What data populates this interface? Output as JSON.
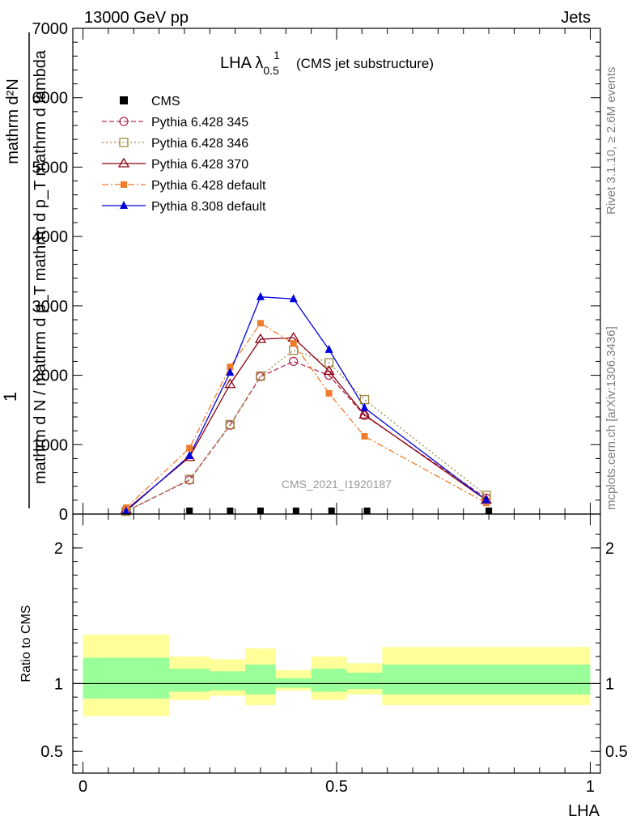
{
  "header": {
    "left": "13000 GeV pp",
    "right": "Jets"
  },
  "side_labels": {
    "rivet": "Rivet 3.1.10, ≥ 2.6M events",
    "mcplots": "mcplots.cern.ch [arXiv:1306.3436]"
  },
  "colors": {
    "cms": "#000000",
    "p345": "#b03050",
    "p346": "#a08840",
    "p370": "#8b0010",
    "p6def": "#f07b2a",
    "p8def": "#0000dd",
    "band_inner": "#99ff99",
    "band_outer": "#ffff99"
  },
  "chart_data": [
    {
      "type": "line",
      "title": "LHA λ",
      "title_sup": "1",
      "title_sub": "0.5",
      "title_suffix": "(CMS jet substructure)",
      "watermark": "CMS_2021_I1920187",
      "ylabel_top": "1",
      "ylabel_frac_num": "mathrm d²N",
      "ylabel_frac_den": "mathrm d N / mathrm d p_T mathrm d p_T mathrm d lambda",
      "xlim": [
        -0.02,
        1.02
      ],
      "ylim": [
        0,
        7000
      ],
      "yticks": [
        0,
        1000,
        2000,
        3000,
        4000,
        5000,
        6000,
        7000
      ],
      "grid": false,
      "legend_position": "top-left",
      "series": [
        {
          "name": "CMS",
          "marker": "filled-square",
          "dash": "",
          "x": [
            0.21,
            0.29,
            0.35,
            0.42,
            0.49,
            0.56,
            0.8
          ],
          "y": [
            0,
            0,
            0,
            0,
            0,
            0,
            0
          ]
        },
        {
          "name": "Pythia 6.428 345",
          "marker": "open-circle",
          "dash": "6,3",
          "x": [
            0.085,
            0.21,
            0.29,
            0.35,
            0.415,
            0.485,
            0.555,
            0.795
          ],
          "y": [
            40,
            490,
            1280,
            1980,
            2200,
            2000,
            1420,
            230
          ]
        },
        {
          "name": "Pythia 6.428 346",
          "marker": "open-square",
          "dash": "2,3",
          "x": [
            0.085,
            0.21,
            0.29,
            0.35,
            0.415,
            0.485,
            0.555,
            0.795
          ],
          "y": [
            40,
            500,
            1290,
            1990,
            2360,
            2180,
            1650,
            270
          ]
        },
        {
          "name": "Pythia 6.428 370",
          "marker": "open-triangle",
          "dash": "",
          "x": [
            0.085,
            0.21,
            0.29,
            0.35,
            0.415,
            0.485,
            0.555,
            0.795
          ],
          "y": [
            60,
            820,
            1870,
            2520,
            2540,
            2060,
            1430,
            200
          ]
        },
        {
          "name": "Pythia 6.428 default",
          "marker": "filled-square-small",
          "dash": "8,3,2,3",
          "x": [
            0.085,
            0.21,
            0.29,
            0.35,
            0.415,
            0.485,
            0.555,
            0.795
          ],
          "y": [
            90,
            950,
            2120,
            2750,
            2460,
            1740,
            1120,
            160
          ]
        },
        {
          "name": "Pythia 8.308 default",
          "marker": "filled-triangle",
          "dash": "",
          "x": [
            0.085,
            0.21,
            0.29,
            0.35,
            0.415,
            0.485,
            0.555,
            0.795
          ],
          "y": [
            40,
            840,
            2040,
            3130,
            3100,
            2370,
            1530,
            200
          ]
        }
      ]
    },
    {
      "type": "area",
      "ylabel": "Ratio to CMS",
      "xlabel": "LHA",
      "xlim": [
        -0.02,
        1.02
      ],
      "ylim": [
        0.34,
        2.25
      ],
      "yticks": [
        0.5,
        1,
        2
      ],
      "xticks": [
        0,
        0.5,
        1
      ],
      "bins": [
        {
          "x0": 0.0,
          "x1": 0.17,
          "inner": [
            0.89,
            1.19
          ],
          "outer": [
            0.76,
            1.36
          ]
        },
        {
          "x0": 0.17,
          "x1": 0.25,
          "inner": [
            0.94,
            1.11
          ],
          "outer": [
            0.88,
            1.2
          ]
        },
        {
          "x0": 0.25,
          "x1": 0.32,
          "inner": [
            0.95,
            1.09
          ],
          "outer": [
            0.91,
            1.18
          ]
        },
        {
          "x0": 0.32,
          "x1": 0.38,
          "inner": [
            0.92,
            1.14
          ],
          "outer": [
            0.84,
            1.26
          ]
        },
        {
          "x0": 0.38,
          "x1": 0.45,
          "inner": [
            0.97,
            1.04
          ],
          "outer": [
            0.95,
            1.1
          ]
        },
        {
          "x0": 0.45,
          "x1": 0.52,
          "inner": [
            0.94,
            1.11
          ],
          "outer": [
            0.88,
            1.2
          ]
        },
        {
          "x0": 0.52,
          "x1": 0.59,
          "inner": [
            0.96,
            1.08
          ],
          "outer": [
            0.92,
            1.15
          ]
        },
        {
          "x0": 0.59,
          "x1": 1.0,
          "inner": [
            0.92,
            1.14
          ],
          "outer": [
            0.84,
            1.27
          ]
        }
      ],
      "reference": 1
    }
  ]
}
